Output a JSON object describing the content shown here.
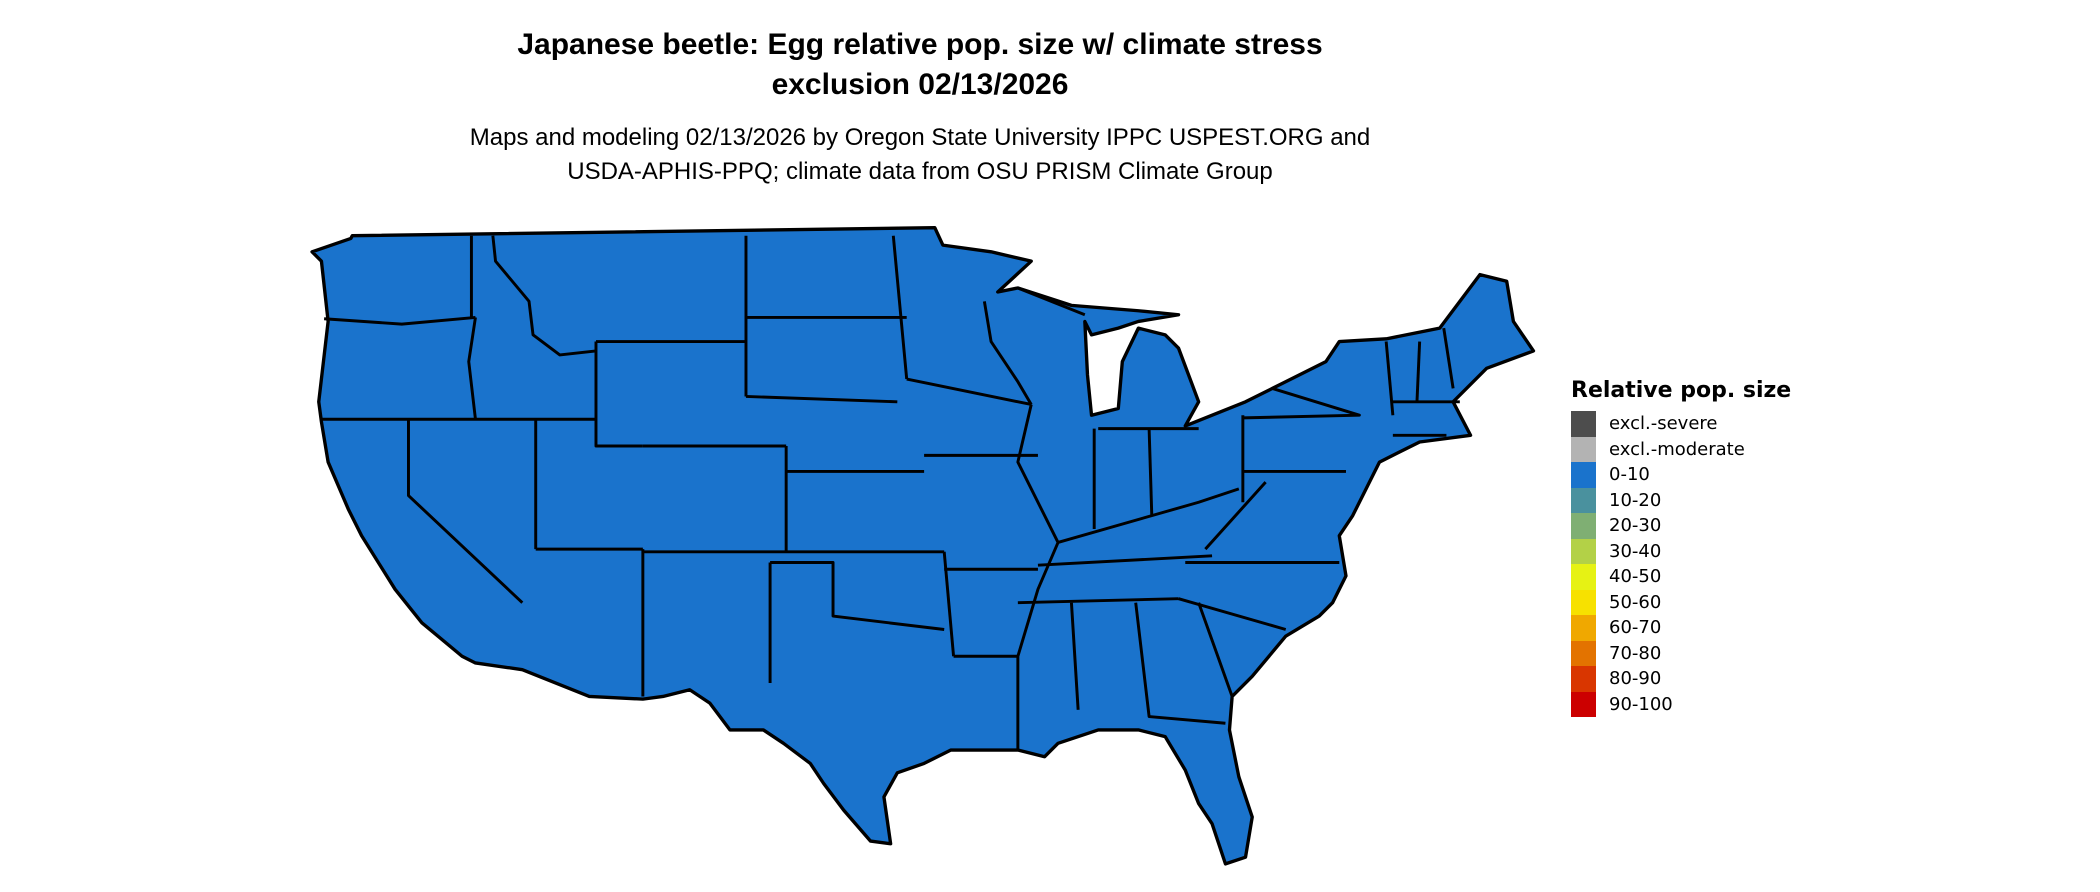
{
  "title": {
    "line1": "Japanese beetle: Egg relative pop. size w/ climate stress",
    "line2": "exclusion 02/13/2026"
  },
  "subtitle": {
    "line1": "Maps and modeling 02/13/2026 by Oregon State University IPPC USPEST.ORG and",
    "line2": "USDA-APHIS-PPQ; climate data from OSU PRISM Climate Group"
  },
  "map": {
    "region": "Contiguous United States",
    "fill_category": "0-10",
    "fill_color": "#1a73cc",
    "border_color": "#000000"
  },
  "legend": {
    "title": "Relative pop. size",
    "items": [
      {
        "label": "excl.-severe",
        "color": "#4d4d4d"
      },
      {
        "label": "excl.-moderate",
        "color": "#b3b3b3"
      },
      {
        "label": "0-10",
        "color": "#1a73cc"
      },
      {
        "label": "10-20",
        "color": "#4a919e"
      },
      {
        "label": "20-30",
        "color": "#7faf73"
      },
      {
        "label": "30-40",
        "color": "#b3d147"
      },
      {
        "label": "40-50",
        "color": "#e6f214"
      },
      {
        "label": "50-60",
        "color": "#f7e100"
      },
      {
        "label": "60-70",
        "color": "#f0a800"
      },
      {
        "label": "70-80",
        "color": "#e37300"
      },
      {
        "label": "80-90",
        "color": "#d93600"
      },
      {
        "label": "90-100",
        "color": "#cc0000"
      }
    ]
  }
}
